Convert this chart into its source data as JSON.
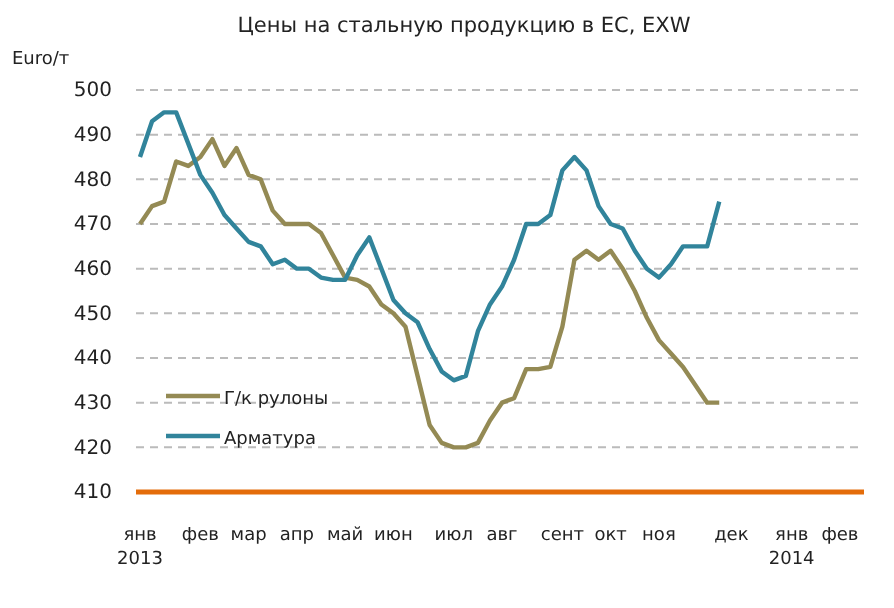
{
  "chart_data": {
    "type": "line",
    "title": "Цены на стальную продукцию в ЕС, EXW",
    "ylabel": "Euro/т",
    "categories": [
      "янв 2013",
      null,
      null,
      null,
      null,
      "фев",
      null,
      null,
      null,
      "мар",
      null,
      null,
      null,
      "апр",
      null,
      null,
      null,
      "май",
      null,
      null,
      null,
      "июн",
      null,
      null,
      null,
      null,
      "июл",
      null,
      null,
      null,
      "авг",
      null,
      null,
      null,
      null,
      "сент",
      null,
      null,
      null,
      "окт",
      null,
      null,
      null,
      "ноя",
      null,
      null,
      null,
      null,
      null,
      "дек",
      null,
      null,
      null,
      null,
      "янв 2014",
      null,
      null,
      null,
      "фев",
      null
    ],
    "series": [
      {
        "name": "Г/к рулоны",
        "color": "#948a54",
        "values": [
          470,
          474,
          475,
          484,
          483,
          485,
          489,
          483,
          487,
          481,
          480,
          473,
          470,
          470,
          470,
          468,
          463,
          458,
          457.5,
          456,
          452,
          450,
          447,
          436,
          425,
          421,
          420,
          420,
          421,
          426,
          430,
          431,
          437.5,
          437.5,
          438,
          447,
          462,
          464,
          462,
          464,
          460,
          455,
          449,
          444,
          441,
          438,
          434,
          430,
          430,
          null,
          null,
          null,
          null,
          null,
          null,
          null,
          null,
          null,
          null,
          null
        ]
      },
      {
        "name": "Арматура",
        "color": "#31849b",
        "values": [
          485,
          493,
          495,
          495,
          488,
          481,
          477,
          472,
          469,
          466,
          465,
          461,
          462,
          460,
          460,
          458,
          457.5,
          457.5,
          463,
          467,
          460,
          453,
          450,
          448,
          442,
          437,
          435,
          436,
          446,
          452,
          456,
          462,
          470,
          470,
          472,
          482,
          485,
          482,
          474,
          470,
          469,
          464,
          460,
          458,
          461,
          465,
          465,
          465,
          475,
          null,
          null,
          null,
          null,
          null,
          null,
          null,
          null,
          null,
          null,
          null
        ]
      }
    ],
    "ylim": [
      410,
      500
    ],
    "yticks": [
      410,
      420,
      430,
      440,
      450,
      460,
      470,
      480,
      490,
      500
    ],
    "grid": "y",
    "legend": "bottom left",
    "line_style": "solid",
    "marker": "none"
  }
}
